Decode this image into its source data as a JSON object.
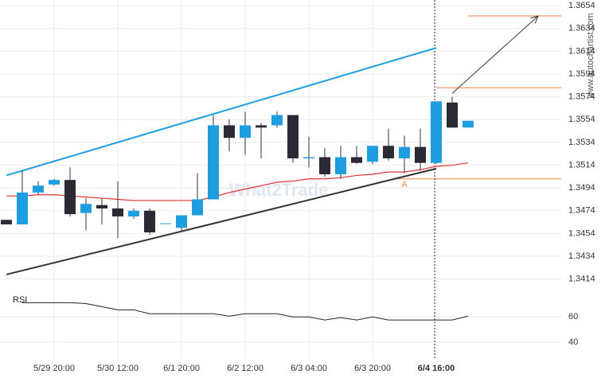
{
  "chart_data": [
    {
      "type": "candlestick",
      "categories": [
        null,
        null,
        null,
        "5/29 20:00",
        null,
        null,
        null,
        "5/30 12:00",
        null,
        null,
        null,
        "6/1 20:00",
        null,
        null,
        null,
        "6/2 12:00",
        null,
        null,
        null,
        "6/3 04:00",
        null,
        null,
        null,
        "6/3 20:00",
        null,
        null,
        null,
        "6/4 16:00",
        null,
        null
      ],
      "open": [
        1.3466,
        1.3462,
        1.349,
        1.3497,
        1.3501,
        1.3472,
        1.3479,
        1.3476,
        1.3469,
        1.3474,
        1.3463,
        1.3459,
        1.347,
        1.3484,
        1.3549,
        1.3538,
        1.3549,
        1.3549,
        1.3558,
        1.352,
        1.3521,
        1.3506,
        1.3521,
        1.3517,
        1.3531,
        1.352,
        1.353,
        1.3516,
        1.3569,
        1.3547
      ],
      "high": [
        1.3466,
        1.3509,
        1.35,
        1.3502,
        1.3512,
        1.3485,
        1.3485,
        1.35,
        1.3476,
        1.3476,
        1.3463,
        1.347,
        1.3507,
        1.3558,
        1.3554,
        1.3561,
        1.3551,
        1.3561,
        1.3558,
        1.3539,
        1.3529,
        1.3531,
        1.3531,
        1.3531,
        1.3546,
        1.354,
        1.3546,
        1.357,
        1.3574,
        1.3551
      ],
      "low": [
        1.3462,
        1.3462,
        1.3488,
        1.3496,
        1.3469,
        1.3457,
        1.3462,
        1.345,
        1.3467,
        1.3453,
        1.3463,
        1.3455,
        1.347,
        1.3484,
        1.3526,
        1.3523,
        1.352,
        1.3547,
        1.3516,
        1.3512,
        1.3504,
        1.3502,
        1.3515,
        1.3515,
        1.3518,
        1.3507,
        1.3509,
        1.3515,
        1.3547,
        1.3547
      ],
      "close": [
        1.3462,
        1.349,
        1.3496,
        1.3501,
        1.3471,
        1.348,
        1.3476,
        1.3469,
        1.3474,
        1.3455,
        1.3463,
        1.347,
        1.3484,
        1.3549,
        1.3538,
        1.3549,
        1.3547,
        1.3558,
        1.352,
        1.3521,
        1.3506,
        1.3521,
        1.3516,
        1.3531,
        1.352,
        1.353,
        1.3516,
        1.357,
        1.3547,
        1.3553
      ],
      "up_color": "#1e9de0",
      "down_color": "#2a2a35",
      "ylim": [
        1.3404,
        1.3659
      ],
      "yticks": [
        1.3414,
        1.3434,
        1.3454,
        1.3474,
        1.3494,
        1.3514,
        1.3534,
        1.3554,
        1.3574,
        1.3594,
        1.3614,
        1.3634,
        1.3654
      ],
      "grid": true,
      "moving_average": {
        "color": "#e03030",
        "values": [
          1.3487,
          1.3487,
          1.3488,
          1.3488,
          1.3487,
          1.3486,
          1.3485,
          1.3484,
          1.3483,
          1.3483,
          1.3483,
          1.3483,
          1.3483,
          1.3486,
          1.349,
          1.3493,
          1.3496,
          1.3499,
          1.35,
          1.3502,
          1.3502,
          1.3503,
          1.3505,
          1.3506,
          1.3508,
          1.3508,
          1.351,
          1.3513,
          1.3514,
          1.3516
        ]
      },
      "trendlines": [
        {
          "color": "#1ea0e0",
          "x": [
            0,
            27
          ],
          "values": [
            1.3505,
            1.3617
          ]
        },
        {
          "color": "#333333",
          "x": [
            0,
            27
          ],
          "values": [
            1.3418,
            1.3511
          ]
        }
      ],
      "arrow": {
        "color": "#333333",
        "x": [
          28,
          33.4
        ],
        "values": [
          1.3577,
          1.3645
        ]
      },
      "levels": [
        {
          "color": "#f08040",
          "from": 29,
          "value": 1.3645
        },
        {
          "color": "#f08040",
          "from": 27,
          "value": 1.3582
        },
        {
          "color": "#f08040",
          "from": 24.6,
          "value": 1.3502
        }
      ],
      "annotations": [
        {
          "text": "A",
          "x": 25,
          "value": 1.3497,
          "color": "#f08040"
        }
      ],
      "current_index": 27,
      "watermark": "What2Trade",
      "source": "www.autochartist.com"
    },
    {
      "type": "line",
      "title": "RSI",
      "series": [
        {
          "color": "#222222",
          "values": [
            null,
            71.3,
            71.3,
            71.3,
            71.3,
            70.6,
            68.1,
            65.6,
            65.6,
            62.5,
            62.5,
            62.5,
            62.5,
            62.5,
            60.6,
            62.5,
            62.5,
            62.5,
            60,
            60,
            57.5,
            59.4,
            57.5,
            60,
            57.5,
            57.5,
            57.5,
            57.5,
            57.5,
            60.6
          ]
        }
      ],
      "ylim": [
        26,
        81
      ],
      "yticks": [
        40,
        60
      ],
      "grid": true
    }
  ]
}
